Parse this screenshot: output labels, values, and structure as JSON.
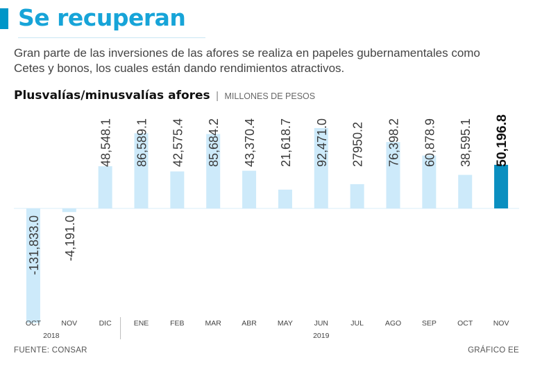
{
  "header": {
    "title": "Se recuperan",
    "subtitle": "Gran parte de las inversiones de las afores se realiza en papeles gubernamentales como Cetes y bonos, los cuales están dando rendimientos atractivos.",
    "chart_title": "Plusvalías/minusvalías afores",
    "separator": "|",
    "units": "MILLONES DE PESOS"
  },
  "footer": {
    "source": "FUENTE: CONSAR",
    "credit": "GRÁFICO EE"
  },
  "colors": {
    "bar": "#cdeafa",
    "highlight": "#0a8fc0",
    "baseline": "#d8eef9",
    "axis_text": "#444444"
  },
  "chart_data": {
    "type": "bar",
    "title": "Plusvalías/minusvalías afores",
    "ylabel": "MILLONES DE PESOS",
    "xlabel": "",
    "categories": [
      "OCT",
      "NOV",
      "DIC",
      "ENE",
      "FEB",
      "MAR",
      "ABR",
      "MAY",
      "JUN",
      "JUL",
      "AGO",
      "SEP",
      "OCT",
      "NOV"
    ],
    "values": [
      -131833.0,
      -4191.0,
      48548.1,
      86589.1,
      42575.4,
      85684.2,
      43370.4,
      21618.7,
      92471.0,
      27950.2,
      76398.2,
      60878.9,
      38595.1,
      50196.8
    ],
    "labels": [
      "-131,833.0",
      "-4,191.0",
      "48,548.1",
      "86,589.1",
      "42,575.4",
      "85,684.2",
      "43,370.4",
      "21,618.7",
      "92,471.0",
      "27950.2",
      "76,398.2",
      "60,878.9",
      "38,595.1",
      "50,196.8"
    ],
    "highlight_index": 13,
    "years": [
      {
        "label": "2018",
        "from": 0,
        "to": 1
      },
      {
        "label": "2019",
        "from": 3,
        "to": 13
      }
    ],
    "ylim": [
      -135000,
      95000
    ],
    "grid": false
  }
}
